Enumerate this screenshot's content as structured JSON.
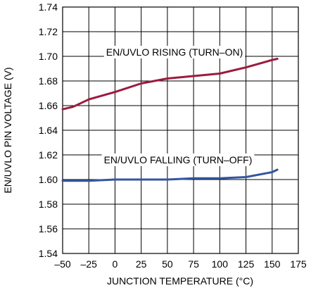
{
  "chart_data": {
    "type": "line",
    "xlabel": "JUNCTION TEMPERATURE (°C)",
    "ylabel": "EN/UVLO PIN VOLTAGE (V)",
    "xlim": [
      -50,
      175
    ],
    "ylim": [
      1.54,
      1.74
    ],
    "x_ticks": [
      -50,
      -25,
      0,
      25,
      50,
      75,
      100,
      125,
      150,
      175
    ],
    "x_tick_labels": [
      "–50",
      "–25",
      "0",
      "25",
      "50",
      "75",
      "100",
      "125",
      "150",
      "175"
    ],
    "y_ticks": [
      1.54,
      1.56,
      1.58,
      1.6,
      1.62,
      1.64,
      1.66,
      1.68,
      1.7,
      1.72,
      1.74
    ],
    "y_tick_labels": [
      "1.54",
      "1.56",
      "1.58",
      "1.60",
      "1.62",
      "1.64",
      "1.66",
      "1.68",
      "1.70",
      "1.72",
      "1.74"
    ],
    "grid": true,
    "series": [
      {
        "name": "EN/UVLO RISING (TURN–ON)",
        "color": "#9b1b3f",
        "x": [
          -50,
          -40,
          -25,
          0,
          25,
          50,
          75,
          100,
          125,
          150,
          155
        ],
        "y": [
          1.657,
          1.659,
          1.665,
          1.671,
          1.678,
          1.682,
          1.684,
          1.686,
          1.691,
          1.697,
          1.698
        ]
      },
      {
        "name": "EN/UVLO FALLING (TURN–OFF)",
        "color": "#3555a0",
        "x": [
          -50,
          -40,
          -25,
          0,
          25,
          50,
          75,
          100,
          125,
          150,
          155
        ],
        "y": [
          1.599,
          1.599,
          1.599,
          1.6,
          1.6,
          1.6,
          1.601,
          1.601,
          1.602,
          1.606,
          1.608
        ]
      }
    ]
  }
}
